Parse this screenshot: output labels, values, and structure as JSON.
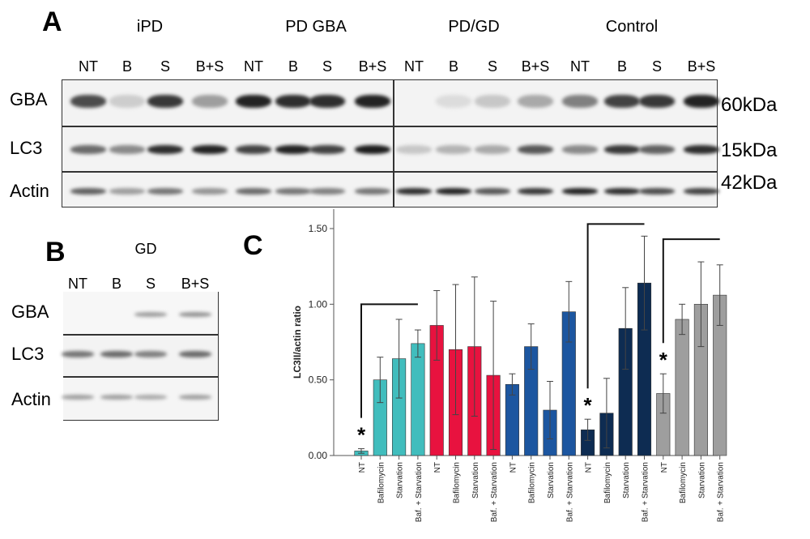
{
  "panel_a": {
    "letter": "A",
    "groups": [
      "iPD",
      "PD GBA",
      "PD/GD",
      "Control"
    ],
    "lanes": [
      "NT",
      "B",
      "S",
      "B+S",
      "NT",
      "B",
      "S",
      "B+S",
      "NT",
      "B",
      "S",
      "B+S",
      "NT",
      "B",
      "S",
      "B+S"
    ],
    "rows": [
      "GBA",
      "LC3",
      "Actin"
    ],
    "sizes": [
      "60kDa",
      "15kDa",
      "42kDa"
    ]
  },
  "panel_b": {
    "letter": "B",
    "group": "GD",
    "lanes": [
      "NT",
      "B",
      "S",
      "B+S"
    ],
    "rows": [
      "GBA",
      "LC3",
      "Actin"
    ]
  },
  "panel_c": {
    "letter": "C",
    "asterisk": "*"
  },
  "chart_data": {
    "type": "bar",
    "ylabel": "LC3II/actin ratio",
    "xlabel": "",
    "ylim": [
      0,
      1.5
    ],
    "yticks": [
      "0.00",
      "0.50",
      "1.00",
      "1.50"
    ],
    "categories": [
      "NT",
      "Bafilomycin",
      "Starvation",
      "Baf. + Starvation",
      "NT",
      "Bafilomycin",
      "Starvation",
      "Baf. + Starvation",
      "NT",
      "Bafilomycin",
      "Starvation",
      "Baf. + Starvation",
      "NT",
      "Bafilomycin",
      "Starvation",
      "Baf. + Starvation",
      "NT",
      "Bafilomycin",
      "Starvation",
      "Baf. + Starvation"
    ],
    "values": [
      0.03,
      0.5,
      0.64,
      0.74,
      0.86,
      0.7,
      0.72,
      0.53,
      0.47,
      0.72,
      0.3,
      0.95,
      0.17,
      0.28,
      0.84,
      1.14,
      0.41,
      0.9,
      1.0,
      1.06
    ],
    "errors": [
      0.015,
      0.15,
      0.26,
      0.09,
      0.23,
      0.43,
      0.46,
      0.49,
      0.07,
      0.15,
      0.19,
      0.2,
      0.07,
      0.23,
      0.27,
      0.31,
      0.13,
      0.1,
      0.28,
      0.2
    ],
    "colors": [
      "#41BDBD",
      "#41BDBD",
      "#41BDBD",
      "#41BDBD",
      "#E8123F",
      "#E8123F",
      "#E8123F",
      "#E8123F",
      "#1C56A0",
      "#1C56A0",
      "#1C56A0",
      "#1C56A0",
      "#0E2C52",
      "#0E2C52",
      "#0E2C52",
      "#0E2C52",
      "#9E9E9E",
      "#9E9E9E",
      "#9E9E9E",
      "#9E9E9E"
    ],
    "significant_bars": [
      0,
      12,
      16
    ],
    "brackets": [
      [
        0,
        3
      ],
      [
        12,
        15
      ],
      [
        16,
        19
      ]
    ],
    "grid": false
  }
}
